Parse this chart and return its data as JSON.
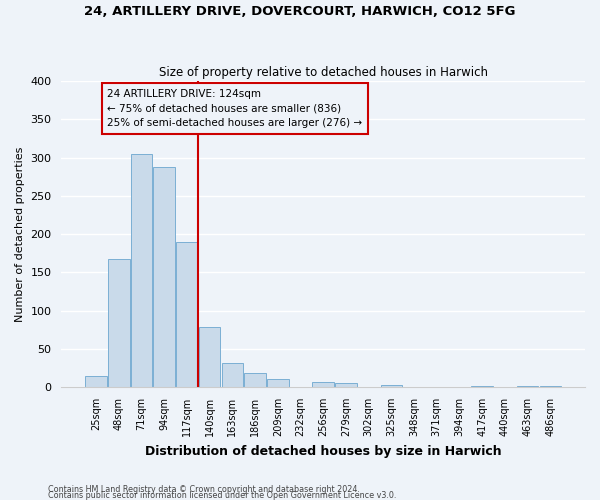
{
  "title": "24, ARTILLERY DRIVE, DOVERCOURT, HARWICH, CO12 5FG",
  "subtitle": "Size of property relative to detached houses in Harwich",
  "xlabel": "Distribution of detached houses by size in Harwich",
  "ylabel": "Number of detached properties",
  "bar_labels": [
    "25sqm",
    "48sqm",
    "71sqm",
    "94sqm",
    "117sqm",
    "140sqm",
    "163sqm",
    "186sqm",
    "209sqm",
    "232sqm",
    "256sqm",
    "279sqm",
    "302sqm",
    "325sqm",
    "348sqm",
    "371sqm",
    "394sqm",
    "417sqm",
    "440sqm",
    "463sqm",
    "486sqm"
  ],
  "bar_values": [
    15,
    168,
    305,
    288,
    190,
    78,
    32,
    19,
    10,
    0,
    7,
    5,
    0,
    3,
    0,
    0,
    0,
    2,
    0,
    2,
    2
  ],
  "bar_color": "#c9daea",
  "bar_edge_color": "#7bafd4",
  "bg_color": "#eef3f9",
  "grid_color": "#ffffff",
  "vline_color": "#cc0000",
  "ylim": [
    0,
    400
  ],
  "yticks": [
    0,
    50,
    100,
    150,
    200,
    250,
    300,
    350,
    400
  ],
  "annotation_title": "24 ARTILLERY DRIVE: 124sqm",
  "annotation_line1": "← 75% of detached houses are smaller (836)",
  "annotation_line2": "25% of semi-detached houses are larger (276) →",
  "annotation_box_color": "#cc0000",
  "footer_line1": "Contains HM Land Registry data © Crown copyright and database right 2024.",
  "footer_line2": "Contains public sector information licensed under the Open Government Licence v3.0."
}
